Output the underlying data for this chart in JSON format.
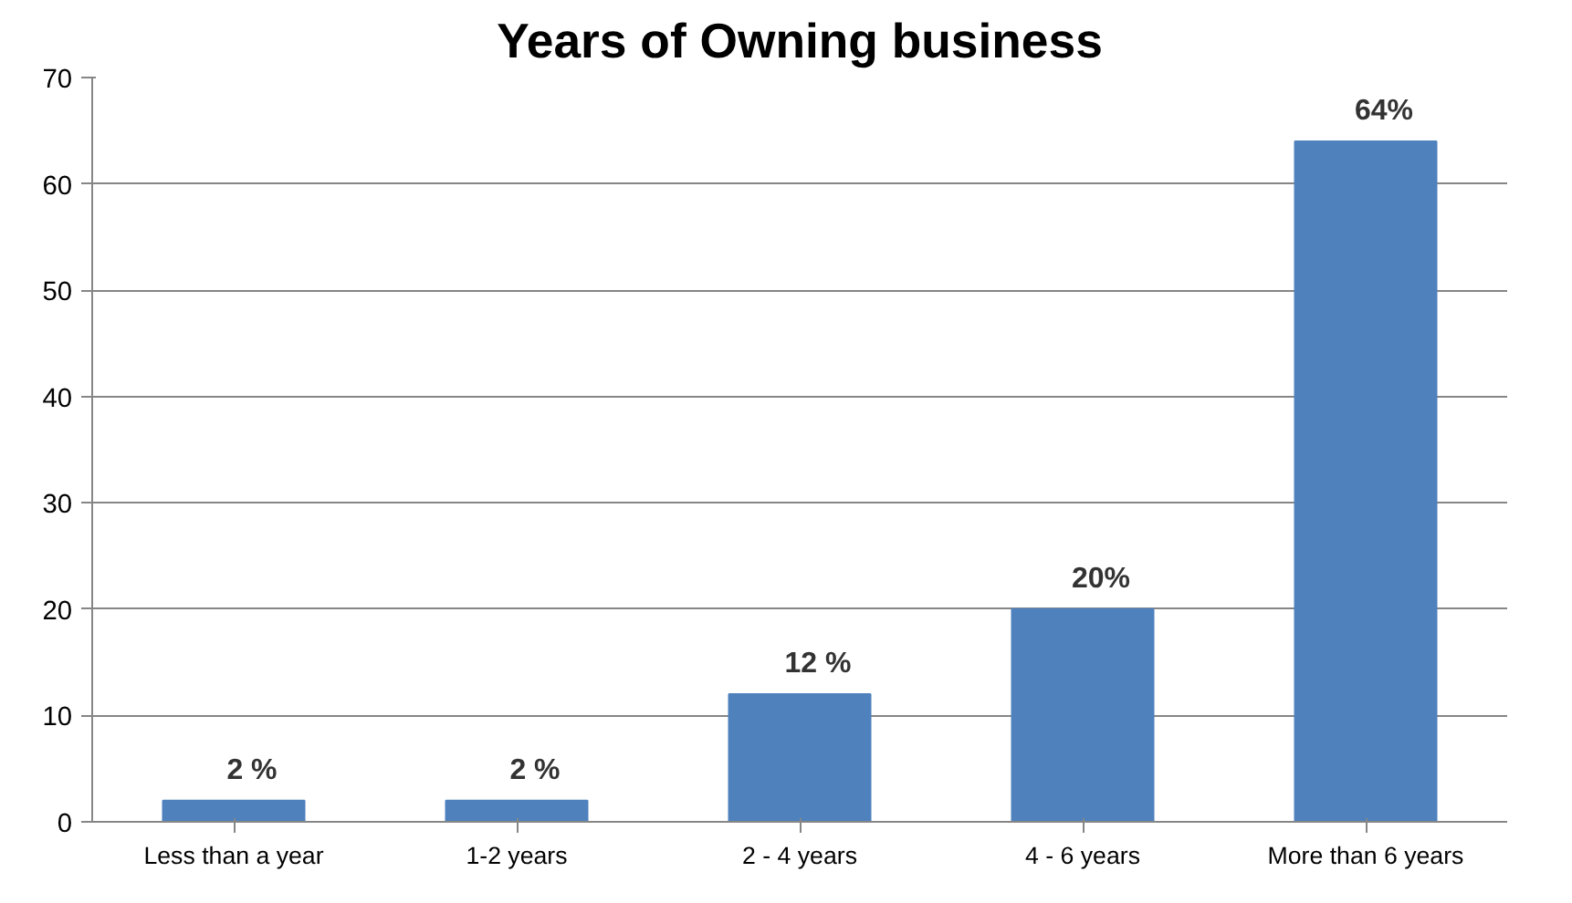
{
  "chart_data": {
    "type": "bar",
    "title": "Years of Owning business",
    "categories": [
      "Less than a year",
      "1-2 years",
      "2 - 4 years",
      "4 - 6 years",
      "More than 6 years"
    ],
    "values": [
      2,
      2,
      12,
      20,
      64
    ],
    "value_labels": [
      "2 %",
      "2 %",
      "12 %",
      "20%",
      "64%"
    ],
    "color": "#4f81bd",
    "ylim": [
      0,
      70
    ],
    "yticks": [
      0,
      10,
      20,
      30,
      40,
      50,
      60,
      70
    ],
    "grid": "y"
  }
}
